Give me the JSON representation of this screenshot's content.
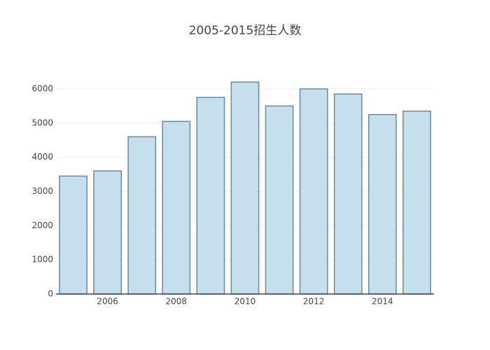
{
  "chart_data": {
    "type": "bar",
    "title": "2005-2015招生人数",
    "x": [
      2005,
      2006,
      2007,
      2008,
      2009,
      2010,
      2011,
      2012,
      2013,
      2014,
      2015
    ],
    "values": [
      3450,
      3600,
      4600,
      5050,
      5750,
      6200,
      5500,
      6000,
      5850,
      5250,
      5350
    ],
    "color": "#c6dfec",
    "edge_color": "#6b87a8",
    "xlim": [
      2004.5,
      2015.5
    ],
    "xticks": [
      2006,
      2008,
      2010,
      2012,
      2014
    ],
    "ylim": [
      0,
      6000
    ],
    "yticks": [
      0,
      1000,
      2000,
      3000,
      4000,
      5000,
      6000
    ],
    "grid": true
  }
}
